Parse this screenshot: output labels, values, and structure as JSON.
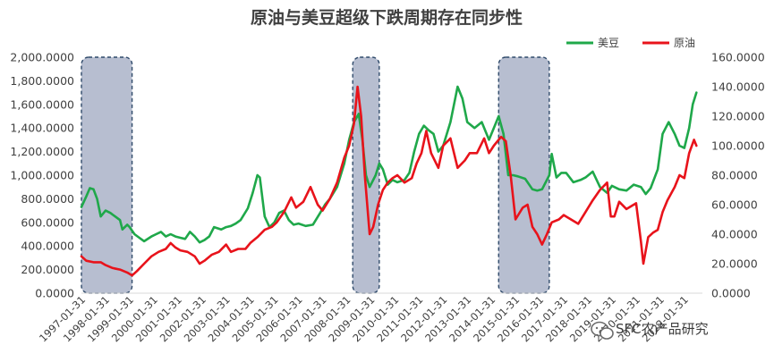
{
  "chart_data": {
    "type": "line",
    "title": "原油与美豆超级下跌周期存在同步性",
    "legend_position": "top-right",
    "grid": false,
    "x_tick_labels": [
      "1997-01-31",
      "1998-01-31",
      "1999-01-31",
      "2000-01-31",
      "2001-01-31",
      "2002-01-31",
      "2003-01-31",
      "2004-01-31",
      "2005-01-31",
      "2006-01-31",
      "2007-01-31",
      "2008-01-31",
      "2009-01-31",
      "2010-01-31",
      "2011-01-31",
      "2012-01-31",
      "2013-01-31",
      "2014-01-31",
      "2015-01-31",
      "2016-01-31",
      "2017-01-31",
      "2018-01-31",
      "2019-01-31",
      "2020-01-31",
      "2021-01-31",
      "2022-01-31"
    ],
    "x_range": [
      1997.0,
      2022.75
    ],
    "y_left": {
      "ticks": [
        "2,000.0000",
        "1,800.0000",
        "1,600.0000",
        "1,400.0000",
        "1,200.0000",
        "1,000.0000",
        "800.0000",
        "600.0000",
        "400.0000",
        "200.0000",
        "0.0000"
      ],
      "range": [
        0,
        2000
      ]
    },
    "y_right": {
      "ticks": [
        "160.0000",
        "140.0000",
        "120.0000",
        "100.0000",
        "80.0000",
        "60.0000",
        "40.0000",
        "20.0000",
        "0.0000"
      ],
      "range": [
        0,
        160
      ]
    },
    "highlight_periods": [
      [
        1997.0,
        1999.1
      ],
      [
        2008.25,
        2009.35
      ],
      [
        2014.3,
        2016.4
      ]
    ],
    "series": [
      {
        "name": "美豆",
        "axis": "left",
        "color": "#1fa84a",
        "points": [
          [
            1997.0,
            730
          ],
          [
            1997.2,
            820
          ],
          [
            1997.35,
            890
          ],
          [
            1997.5,
            880
          ],
          [
            1997.65,
            800
          ],
          [
            1997.8,
            650
          ],
          [
            1998.0,
            700
          ],
          [
            1998.2,
            680
          ],
          [
            1998.4,
            650
          ],
          [
            1998.6,
            620
          ],
          [
            1998.7,
            540
          ],
          [
            1998.9,
            580
          ],
          [
            1999.0,
            560
          ],
          [
            1999.2,
            500
          ],
          [
            1999.4,
            470
          ],
          [
            1999.6,
            440
          ],
          [
            1999.9,
            480
          ],
          [
            2000.1,
            500
          ],
          [
            2000.3,
            520
          ],
          [
            2000.5,
            480
          ],
          [
            2000.7,
            500
          ],
          [
            2000.9,
            480
          ],
          [
            2001.1,
            470
          ],
          [
            2001.3,
            460
          ],
          [
            2001.5,
            520
          ],
          [
            2001.7,
            480
          ],
          [
            2001.9,
            430
          ],
          [
            2002.1,
            450
          ],
          [
            2002.3,
            480
          ],
          [
            2002.5,
            560
          ],
          [
            2002.8,
            540
          ],
          [
            2003.0,
            560
          ],
          [
            2003.2,
            570
          ],
          [
            2003.4,
            590
          ],
          [
            2003.6,
            620
          ],
          [
            2003.9,
            720
          ],
          [
            2004.1,
            850
          ],
          [
            2004.3,
            1000
          ],
          [
            2004.4,
            980
          ],
          [
            2004.6,
            650
          ],
          [
            2004.8,
            560
          ],
          [
            2005.0,
            600
          ],
          [
            2005.2,
            680
          ],
          [
            2005.4,
            700
          ],
          [
            2005.6,
            620
          ],
          [
            2005.8,
            580
          ],
          [
            2006.0,
            590
          ],
          [
            2006.3,
            570
          ],
          [
            2006.6,
            580
          ],
          [
            2006.9,
            680
          ],
          [
            2007.1,
            750
          ],
          [
            2007.3,
            800
          ],
          [
            2007.6,
            900
          ],
          [
            2007.9,
            1100
          ],
          [
            2008.1,
            1300
          ],
          [
            2008.3,
            1450
          ],
          [
            2008.5,
            1520
          ],
          [
            2008.65,
            1300
          ],
          [
            2008.8,
            1000
          ],
          [
            2008.95,
            900
          ],
          [
            2009.2,
            1000
          ],
          [
            2009.35,
            1100
          ],
          [
            2009.5,
            1050
          ],
          [
            2009.7,
            920
          ],
          [
            2009.9,
            960
          ],
          [
            2010.1,
            940
          ],
          [
            2010.4,
            960
          ],
          [
            2010.6,
            1020
          ],
          [
            2010.8,
            1200
          ],
          [
            2011.0,
            1350
          ],
          [
            2011.2,
            1420
          ],
          [
            2011.4,
            1380
          ],
          [
            2011.6,
            1350
          ],
          [
            2011.8,
            1200
          ],
          [
            2012.0,
            1250
          ],
          [
            2012.3,
            1450
          ],
          [
            2012.6,
            1750
          ],
          [
            2012.8,
            1650
          ],
          [
            2013.0,
            1450
          ],
          [
            2013.3,
            1400
          ],
          [
            2013.6,
            1450
          ],
          [
            2013.9,
            1300
          ],
          [
            2014.1,
            1400
          ],
          [
            2014.3,
            1500
          ],
          [
            2014.5,
            1350
          ],
          [
            2014.7,
            1000
          ],
          [
            2014.9,
            1000
          ],
          [
            2015.1,
            990
          ],
          [
            2015.4,
            970
          ],
          [
            2015.7,
            880
          ],
          [
            2015.9,
            870
          ],
          [
            2016.1,
            880
          ],
          [
            2016.4,
            1000
          ],
          [
            2016.5,
            1180
          ],
          [
            2016.7,
            980
          ],
          [
            2016.9,
            1020
          ],
          [
            2017.1,
            1020
          ],
          [
            2017.4,
            940
          ],
          [
            2017.7,
            960
          ],
          [
            2017.9,
            980
          ],
          [
            2018.2,
            1030
          ],
          [
            2018.5,
            900
          ],
          [
            2018.8,
            850
          ],
          [
            2019.0,
            910
          ],
          [
            2019.3,
            880
          ],
          [
            2019.6,
            870
          ],
          [
            2019.9,
            920
          ],
          [
            2020.2,
            900
          ],
          [
            2020.4,
            840
          ],
          [
            2020.6,
            890
          ],
          [
            2020.9,
            1050
          ],
          [
            2021.1,
            1350
          ],
          [
            2021.35,
            1450
          ],
          [
            2021.6,
            1350
          ],
          [
            2021.8,
            1250
          ],
          [
            2022.0,
            1230
          ],
          [
            2022.2,
            1400
          ],
          [
            2022.35,
            1600
          ],
          [
            2022.5,
            1700
          ]
        ]
      },
      {
        "name": "原油",
        "axis": "right",
        "color": "#e8131b",
        "points": [
          [
            1997.0,
            25
          ],
          [
            1997.2,
            22
          ],
          [
            1997.5,
            21
          ],
          [
            1997.8,
            21
          ],
          [
            1998.0,
            19
          ],
          [
            1998.3,
            17
          ],
          [
            1998.6,
            16
          ],
          [
            1998.9,
            14
          ],
          [
            1999.1,
            12
          ],
          [
            1999.3,
            15
          ],
          [
            1999.6,
            20
          ],
          [
            1999.9,
            25
          ],
          [
            2000.2,
            28
          ],
          [
            2000.5,
            30
          ],
          [
            2000.7,
            34
          ],
          [
            2000.9,
            31
          ],
          [
            2001.1,
            29
          ],
          [
            2001.4,
            28
          ],
          [
            2001.7,
            25
          ],
          [
            2001.9,
            20
          ],
          [
            2002.1,
            22
          ],
          [
            2002.4,
            26
          ],
          [
            2002.7,
            28
          ],
          [
            2003.0,
            33
          ],
          [
            2003.2,
            28
          ],
          [
            2003.5,
            30
          ],
          [
            2003.8,
            30
          ],
          [
            2004.0,
            34
          ],
          [
            2004.3,
            38
          ],
          [
            2004.6,
            43
          ],
          [
            2004.9,
            45
          ],
          [
            2005.1,
            48
          ],
          [
            2005.4,
            55
          ],
          [
            2005.7,
            65
          ],
          [
            2005.9,
            58
          ],
          [
            2006.2,
            62
          ],
          [
            2006.5,
            72
          ],
          [
            2006.8,
            60
          ],
          [
            2007.0,
            56
          ],
          [
            2007.3,
            64
          ],
          [
            2007.6,
            75
          ],
          [
            2007.9,
            92
          ],
          [
            2008.1,
            100
          ],
          [
            2008.3,
            115
          ],
          [
            2008.45,
            140
          ],
          [
            2008.6,
            120
          ],
          [
            2008.75,
            80
          ],
          [
            2008.95,
            40
          ],
          [
            2009.1,
            45
          ],
          [
            2009.3,
            60
          ],
          [
            2009.5,
            70
          ],
          [
            2009.7,
            75
          ],
          [
            2009.9,
            78
          ],
          [
            2010.1,
            80
          ],
          [
            2010.4,
            75
          ],
          [
            2010.7,
            78
          ],
          [
            2010.9,
            88
          ],
          [
            2011.1,
            95
          ],
          [
            2011.3,
            110
          ],
          [
            2011.5,
            95
          ],
          [
            2011.8,
            85
          ],
          [
            2012.0,
            100
          ],
          [
            2012.3,
            105
          ],
          [
            2012.6,
            85
          ],
          [
            2012.9,
            90
          ],
          [
            2013.1,
            95
          ],
          [
            2013.4,
            95
          ],
          [
            2013.7,
            105
          ],
          [
            2013.9,
            95
          ],
          [
            2014.1,
            100
          ],
          [
            2014.4,
            106
          ],
          [
            2014.6,
            103
          ],
          [
            2014.8,
            80
          ],
          [
            2015.0,
            50
          ],
          [
            2015.3,
            58
          ],
          [
            2015.5,
            60
          ],
          [
            2015.7,
            45
          ],
          [
            2015.9,
            40
          ],
          [
            2016.1,
            33
          ],
          [
            2016.3,
            40
          ],
          [
            2016.5,
            48
          ],
          [
            2016.8,
            50
          ],
          [
            2017.0,
            53
          ],
          [
            2017.3,
            50
          ],
          [
            2017.6,
            47
          ],
          [
            2017.9,
            55
          ],
          [
            2018.2,
            63
          ],
          [
            2018.5,
            70
          ],
          [
            2018.8,
            75
          ],
          [
            2018.95,
            52
          ],
          [
            2019.1,
            52
          ],
          [
            2019.3,
            62
          ],
          [
            2019.6,
            57
          ],
          [
            2019.9,
            60
          ],
          [
            2020.0,
            61
          ],
          [
            2020.2,
            35
          ],
          [
            2020.3,
            20
          ],
          [
            2020.5,
            38
          ],
          [
            2020.7,
            41
          ],
          [
            2020.9,
            43
          ],
          [
            2021.1,
            55
          ],
          [
            2021.3,
            63
          ],
          [
            2021.6,
            72
          ],
          [
            2021.8,
            80
          ],
          [
            2022.0,
            78
          ],
          [
            2022.2,
            95
          ],
          [
            2022.4,
            104
          ],
          [
            2022.5,
            100
          ]
        ]
      }
    ]
  },
  "watermark": {
    "text": "SFC农产品研究"
  }
}
